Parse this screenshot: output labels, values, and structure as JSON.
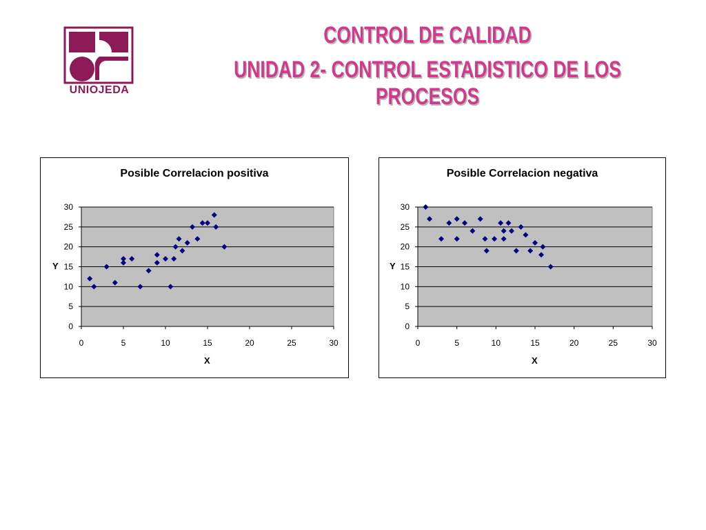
{
  "header": {
    "logo_text": "UNIOJEDA",
    "title_line1": "CONTROL DE CALIDAD",
    "title_line2": "UNIDAD 2- CONTROL ESTADISTICO DE LOS PROCESOS"
  },
  "colors": {
    "brand": "#8c1a57",
    "title": "#d13a8c",
    "marker": "#000080",
    "plot_bg": "#c0c0c0"
  },
  "chart_data": [
    {
      "type": "scatter",
      "title": "Posible Correlacion positiva",
      "xlabel": "X",
      "ylabel": "Y",
      "xlim": [
        0,
        30
      ],
      "ylim": [
        0,
        30
      ],
      "xticks": [
        0,
        5,
        10,
        15,
        20,
        25,
        30
      ],
      "yticks": [
        0,
        5,
        10,
        15,
        20,
        25,
        30
      ],
      "grid": "horizontal",
      "legend": "none",
      "points": [
        [
          1,
          12
        ],
        [
          1.5,
          10
        ],
        [
          3,
          15
        ],
        [
          4,
          11
        ],
        [
          5,
          16
        ],
        [
          5,
          17
        ],
        [
          6,
          17
        ],
        [
          7,
          10
        ],
        [
          8,
          14
        ],
        [
          9,
          16
        ],
        [
          9,
          18
        ],
        [
          10,
          17
        ],
        [
          10.6,
          10
        ],
        [
          11,
          17
        ],
        [
          11.2,
          20
        ],
        [
          11.6,
          22
        ],
        [
          12,
          19
        ],
        [
          12.6,
          21
        ],
        [
          13.2,
          25
        ],
        [
          13.8,
          22
        ],
        [
          14.4,
          26
        ],
        [
          15,
          26
        ],
        [
          15.8,
          28
        ],
        [
          16,
          25
        ],
        [
          17,
          20
        ]
      ]
    },
    {
      "type": "scatter",
      "title": "Posible Correlacion negativa",
      "xlabel": "X",
      "ylabel": "Y",
      "xlim": [
        0,
        30
      ],
      "ylim": [
        0,
        30
      ],
      "xticks": [
        0,
        5,
        10,
        15,
        20,
        25,
        30
      ],
      "yticks": [
        0,
        5,
        10,
        15,
        20,
        25,
        30
      ],
      "grid": "horizontal",
      "legend": "none",
      "points": [
        [
          1,
          30
        ],
        [
          1.5,
          27
        ],
        [
          3,
          22
        ],
        [
          4,
          26
        ],
        [
          5,
          27
        ],
        [
          5,
          22
        ],
        [
          6,
          26
        ],
        [
          7,
          24
        ],
        [
          8,
          27
        ],
        [
          8.6,
          22
        ],
        [
          8.8,
          19
        ],
        [
          9.8,
          22
        ],
        [
          10.6,
          26
        ],
        [
          11,
          24
        ],
        [
          11,
          22
        ],
        [
          11.6,
          26
        ],
        [
          12,
          24
        ],
        [
          12.6,
          19
        ],
        [
          13.2,
          25
        ],
        [
          13.8,
          23
        ],
        [
          14.4,
          19
        ],
        [
          15,
          21
        ],
        [
          15.8,
          18
        ],
        [
          16,
          20
        ],
        [
          17,
          15
        ]
      ]
    }
  ]
}
